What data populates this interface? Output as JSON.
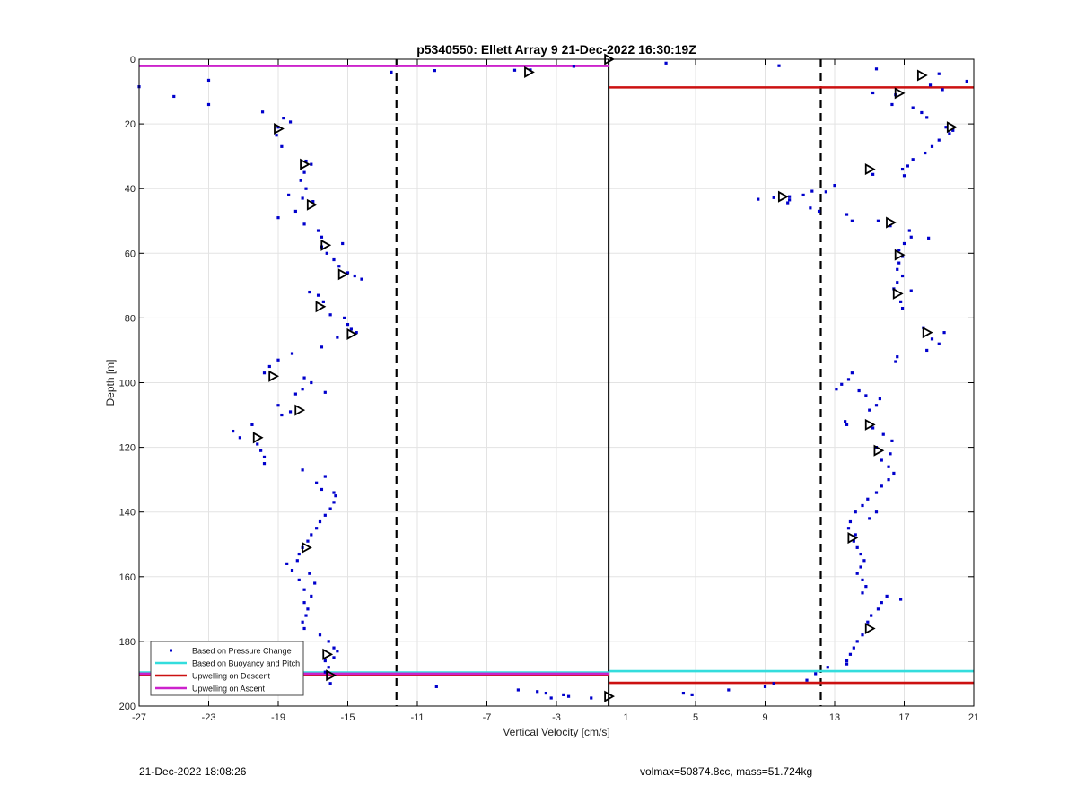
{
  "chart_data": {
    "type": "scatter",
    "title": "p5340550: Ellett Array 9 21-Dec-2022 16:30:19Z",
    "xlabel": "Vertical Velocity [cm/s]",
    "ylabel": "Depth [m]",
    "xlim": [
      -27,
      21
    ],
    "ylim": [
      0,
      200
    ],
    "y_reversed": true,
    "grid": true,
    "legend_position": "bottom-left",
    "xticks": [
      -27,
      -23,
      -19,
      -15,
      -11,
      -7,
      -3,
      1,
      5,
      9,
      13,
      17,
      21
    ],
    "yticks": [
      0,
      20,
      40,
      60,
      80,
      100,
      120,
      140,
      160,
      180,
      200
    ],
    "legend": [
      {
        "label": "Based on Pressure Change",
        "color": "#0000cc",
        "kind": "marker"
      },
      {
        "label": "Based on Buoyancy and Pitch",
        "color": "#33dddd",
        "kind": "line"
      },
      {
        "label": "Upwelling on Descent",
        "color": "#cc1111",
        "kind": "line"
      },
      {
        "label": "Upwelling on Ascent",
        "color": "#cc22cc",
        "kind": "line"
      }
    ],
    "reference_lines": [
      {
        "type": "vertical",
        "x": -12.2,
        "style": "dashed",
        "color": "#000000"
      },
      {
        "type": "vertical",
        "x": 12.2,
        "style": "dashed",
        "color": "#000000"
      },
      {
        "type": "vertical",
        "x": 0,
        "style": "solid",
        "color": "#000000"
      }
    ],
    "series": [
      {
        "name": "Based on Pressure Change",
        "color": "#0000cc",
        "points": [
          [
            -27,
            8.5
          ],
          [
            -25,
            11.5
          ],
          [
            -23,
            6.5
          ],
          [
            -23,
            14
          ],
          [
            -19.9,
            16.3
          ],
          [
            -18.7,
            18.2
          ],
          [
            -18.3,
            19.4
          ],
          [
            -19,
            21
          ],
          [
            -19.1,
            23.5
          ],
          [
            -18.8,
            27
          ],
          [
            -17.4,
            31.5
          ],
          [
            -17.1,
            32.5
          ],
          [
            -17.5,
            35
          ],
          [
            -17.7,
            37.5
          ],
          [
            -17.4,
            40
          ],
          [
            -18.4,
            42
          ],
          [
            -17.6,
            43
          ],
          [
            -17,
            44
          ],
          [
            -18,
            47
          ],
          [
            -19,
            49
          ],
          [
            -17.5,
            51
          ],
          [
            -16.7,
            53
          ],
          [
            -16.5,
            55
          ],
          [
            -15.3,
            57
          ],
          [
            -16.5,
            58
          ],
          [
            -16.2,
            60
          ],
          [
            -15.8,
            62
          ],
          [
            -15.5,
            64
          ],
          [
            -15,
            66
          ],
          [
            -14.6,
            67
          ],
          [
            -14.2,
            68
          ],
          [
            -17.2,
            72
          ],
          [
            -16.7,
            73
          ],
          [
            -16.4,
            75
          ],
          [
            -16,
            79
          ],
          [
            -15.2,
            80
          ],
          [
            -15,
            82
          ],
          [
            -14.8,
            83.5
          ],
          [
            -14.5,
            84.5
          ],
          [
            -15.6,
            86
          ],
          [
            -16.5,
            89
          ],
          [
            -18.2,
            91
          ],
          [
            -19,
            93
          ],
          [
            -19.5,
            95
          ],
          [
            -19.8,
            97
          ],
          [
            -17.5,
            98.5
          ],
          [
            -17.1,
            100
          ],
          [
            -17.6,
            102
          ],
          [
            -18,
            103.5
          ],
          [
            -16.3,
            103
          ],
          [
            -19,
            107
          ],
          [
            -18.3,
            109
          ],
          [
            -18.8,
            110
          ],
          [
            -20.5,
            113
          ],
          [
            -21.6,
            115
          ],
          [
            -21.2,
            117
          ],
          [
            -20.2,
            119
          ],
          [
            -20,
            121
          ],
          [
            -19.8,
            123
          ],
          [
            -19.8,
            125
          ],
          [
            -17.6,
            127
          ],
          [
            -16.3,
            129
          ],
          [
            -16.8,
            131
          ],
          [
            -16.5,
            133
          ],
          [
            -15.8,
            134
          ],
          [
            -15.7,
            135
          ],
          [
            -15.8,
            137
          ],
          [
            -16,
            139
          ],
          [
            -16.3,
            141
          ],
          [
            -16.6,
            143
          ],
          [
            -16.8,
            145
          ],
          [
            -17.1,
            147
          ],
          [
            -17.3,
            149
          ],
          [
            -17.6,
            151
          ],
          [
            -17.8,
            153
          ],
          [
            -17.9,
            155
          ],
          [
            -18.5,
            156
          ],
          [
            -18.2,
            158
          ],
          [
            -17.2,
            159
          ],
          [
            -17.8,
            161
          ],
          [
            -16.9,
            162
          ],
          [
            -17.5,
            164
          ],
          [
            -17.1,
            166
          ],
          [
            -17.5,
            168
          ],
          [
            -17.3,
            170
          ],
          [
            -17.4,
            172
          ],
          [
            -17.6,
            174
          ],
          [
            -17.5,
            176
          ],
          [
            -16.6,
            178
          ],
          [
            -16.1,
            180
          ],
          [
            -15.8,
            182
          ],
          [
            -15.6,
            183
          ],
          [
            -15.8,
            185
          ],
          [
            -16.3,
            186
          ],
          [
            -16.1,
            188
          ],
          [
            -16.3,
            189.5
          ],
          [
            -18,
            191
          ],
          [
            -16,
            193
          ],
          [
            -12.5,
            4
          ],
          [
            -10,
            3.5
          ],
          [
            -5.4,
            3.4
          ],
          [
            -4.5,
            3.3
          ],
          [
            -2,
            2.2
          ],
          [
            3.3,
            1.2
          ],
          [
            9.8,
            2
          ],
          [
            15.4,
            3
          ],
          [
            19,
            4.5
          ],
          [
            20.6,
            6.8
          ],
          [
            18.5,
            8
          ],
          [
            19.2,
            9.4
          ],
          [
            15.2,
            10.4
          ],
          [
            16.5,
            11
          ],
          [
            16.3,
            14
          ],
          [
            17.5,
            15
          ],
          [
            18,
            16.5
          ],
          [
            18.3,
            18
          ],
          [
            19.4,
            21
          ],
          [
            19.8,
            22
          ],
          [
            19.6,
            23
          ],
          [
            19,
            25
          ],
          [
            18.6,
            27
          ],
          [
            18.2,
            29
          ],
          [
            17.5,
            31
          ],
          [
            17.2,
            33
          ],
          [
            16.9,
            34
          ],
          [
            17,
            36
          ],
          [
            15.2,
            35.6
          ],
          [
            12.5,
            41
          ],
          [
            13,
            39
          ],
          [
            11.7,
            40.8
          ],
          [
            11.2,
            42
          ],
          [
            10.4,
            42.5
          ],
          [
            9.5,
            42.8
          ],
          [
            8.6,
            43.3
          ],
          [
            10.4,
            43.5
          ],
          [
            10.3,
            44.4
          ],
          [
            11.6,
            46
          ],
          [
            12.1,
            47
          ],
          [
            13.7,
            48
          ],
          [
            14,
            50
          ],
          [
            15.5,
            50
          ],
          [
            16.2,
            51.5
          ],
          [
            17.3,
            53
          ],
          [
            17.4,
            55
          ],
          [
            18.4,
            55.3
          ],
          [
            17,
            57
          ],
          [
            16.7,
            59
          ],
          [
            16.9,
            61
          ],
          [
            16.7,
            63
          ],
          [
            16.6,
            65
          ],
          [
            16.9,
            67
          ],
          [
            16.6,
            69
          ],
          [
            16.4,
            71
          ],
          [
            17.4,
            71.6
          ],
          [
            16.8,
            75
          ],
          [
            16.9,
            77
          ],
          [
            18.1,
            83
          ],
          [
            19.3,
            84.5
          ],
          [
            18.6,
            86.5
          ],
          [
            19,
            88
          ],
          [
            18.3,
            90
          ],
          [
            16.6,
            92
          ],
          [
            16.5,
            93.5
          ],
          [
            14,
            97
          ],
          [
            13.8,
            99
          ],
          [
            13.4,
            100.5
          ],
          [
            13.1,
            102
          ],
          [
            14.4,
            102.5
          ],
          [
            14.8,
            104
          ],
          [
            15.6,
            105
          ],
          [
            15.4,
            107
          ],
          [
            15,
            108.5
          ],
          [
            13.6,
            112
          ],
          [
            13.7,
            113
          ],
          [
            15.2,
            114
          ],
          [
            15.8,
            116
          ],
          [
            16.3,
            118
          ],
          [
            15.4,
            120
          ],
          [
            16.2,
            122
          ],
          [
            15.7,
            124
          ],
          [
            16.1,
            126
          ],
          [
            16.4,
            128
          ],
          [
            16.1,
            130
          ],
          [
            15.7,
            132
          ],
          [
            15.4,
            134
          ],
          [
            14.9,
            136
          ],
          [
            14.6,
            138
          ],
          [
            14.2,
            140
          ],
          [
            15.4,
            140
          ],
          [
            15,
            142
          ],
          [
            13.9,
            143
          ],
          [
            13.8,
            145
          ],
          [
            14.2,
            147
          ],
          [
            14.1,
            149
          ],
          [
            14.3,
            151
          ],
          [
            14.5,
            153
          ],
          [
            14.7,
            155
          ],
          [
            14.5,
            157
          ],
          [
            14.3,
            159
          ],
          [
            14.6,
            161
          ],
          [
            14.8,
            163
          ],
          [
            14.6,
            165
          ],
          [
            16,
            166
          ],
          [
            16.8,
            167
          ],
          [
            15.7,
            168
          ],
          [
            15.5,
            170
          ],
          [
            15.1,
            172
          ],
          [
            14.9,
            174
          ],
          [
            14.6,
            178
          ],
          [
            14.3,
            180
          ],
          [
            14.1,
            182
          ],
          [
            13.9,
            184
          ],
          [
            13.7,
            186
          ],
          [
            13.7,
            187
          ],
          [
            12.6,
            188
          ],
          [
            11.9,
            190
          ],
          [
            11.4,
            192
          ],
          [
            9.5,
            193
          ],
          [
            9,
            194
          ],
          [
            6.9,
            195
          ],
          [
            4.3,
            196
          ],
          [
            4.8,
            196.5
          ],
          [
            -9.9,
            194
          ],
          [
            -5.2,
            195
          ],
          [
            -4.1,
            195.5
          ],
          [
            -3.6,
            196
          ],
          [
            -2.6,
            196.5
          ],
          [
            -2.3,
            197
          ],
          [
            -3.3,
            197.5
          ],
          [
            -1,
            197.5
          ]
        ]
      },
      {
        "name": "Based on Buoyancy and Pitch",
        "color": "#33dddd",
        "lines": [
          {
            "depth": 189.2,
            "x_from": 0,
            "x_to": 21
          },
          {
            "depth": 189.6,
            "x_from": -27,
            "x_to": 0
          }
        ]
      },
      {
        "name": "Upwelling on Descent",
        "color": "#cc1111",
        "lines": [
          {
            "depth": 8.7,
            "x_from": 0,
            "x_to": 21
          },
          {
            "depth": 192.8,
            "x_from": 0,
            "x_to": 21
          },
          {
            "depth": 190.3,
            "x_from": -27,
            "x_to": 0
          }
        ]
      },
      {
        "name": "Upwelling on Ascent",
        "color": "#cc22cc",
        "lines": [
          {
            "depth": 2.1,
            "x_from": -27,
            "x_to": 0
          },
          {
            "depth": 190,
            "x_from": -27,
            "x_to": 0
          }
        ]
      }
    ],
    "triangle_markers": [
      [
        0,
        0
      ],
      [
        -4.6,
        4
      ],
      [
        18,
        5
      ],
      [
        16.7,
        10.5
      ],
      [
        -19,
        21.5
      ],
      [
        19.7,
        21
      ],
      [
        -17.5,
        32.5
      ],
      [
        15,
        34
      ],
      [
        -17.1,
        45
      ],
      [
        16.2,
        50.5
      ],
      [
        -16.3,
        57.5
      ],
      [
        16.7,
        60.5
      ],
      [
        -15.3,
        66.5
      ],
      [
        16.6,
        72.5
      ],
      [
        -16.6,
        76.5
      ],
      [
        18.3,
        84.5
      ],
      [
        -14.8,
        85
      ],
      [
        -19.3,
        98
      ],
      [
        -17.8,
        108.5
      ],
      [
        15,
        113
      ],
      [
        -20.2,
        117
      ],
      [
        15.5,
        121
      ],
      [
        -17.4,
        151
      ],
      [
        14,
        148
      ],
      [
        15,
        176
      ],
      [
        -16.2,
        184
      ],
      [
        10,
        42.5
      ],
      [
        -16,
        190.5
      ],
      [
        0,
        197
      ]
    ]
  },
  "footer": {
    "left": "21-Dec-2022 18:08:26",
    "right": "volmax=50874.8cc, mass=51.724kg"
  }
}
